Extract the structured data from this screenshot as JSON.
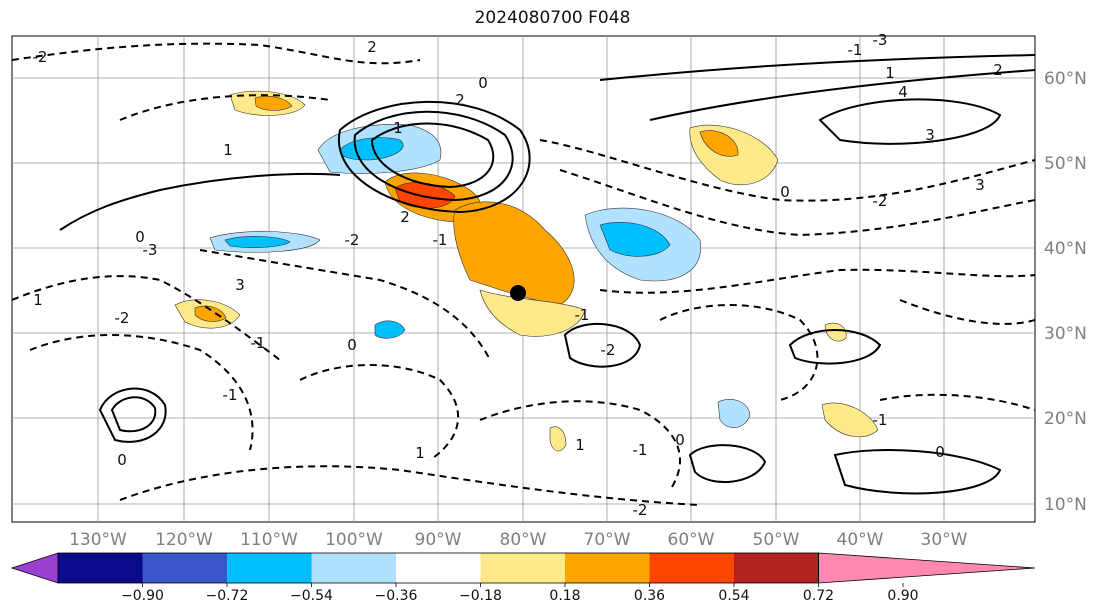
{
  "title": "2024080700 F048",
  "longitude_labels": [
    "130°W",
    "120°W",
    "110°W",
    "100°W",
    "90°W",
    "80°W",
    "70°W",
    "60°W",
    "50°W",
    "40°W",
    "30°W"
  ],
  "latitude_labels": [
    "60°N",
    "50°N",
    "40°N",
    "30°N",
    "20°N",
    "10°N"
  ],
  "colorbar": {
    "tick_labels": [
      "−0.90",
      "−0.72",
      "−0.54",
      "−0.36",
      "−0.18",
      "0.18",
      "0.36",
      "0.54",
      "0.72",
      "0.90"
    ],
    "colors": [
      "#9a3fd0",
      "#0a0a8a",
      "#3a56c8",
      "#00bfff",
      "#b0e2ff",
      "#ffffff",
      "#ffe98a",
      "#ffa500",
      "#ff4500",
      "#b22222",
      "#ff88b0"
    ]
  },
  "contour_labels": [
    "2",
    "-2",
    "0",
    "4",
    "3",
    "-3",
    "1",
    "-1",
    "2",
    "-2",
    "0",
    "-2",
    "-1",
    "1",
    "3",
    "-3",
    "0",
    "-1",
    "1",
    "-2",
    "2",
    "0",
    "1",
    "-1",
    "-2",
    "0",
    "-1",
    "-2",
    "2",
    "1",
    "-1",
    "0",
    "3",
    "1",
    "-1",
    "0"
  ],
  "marker": {
    "type": "point",
    "color": "#000000"
  }
}
